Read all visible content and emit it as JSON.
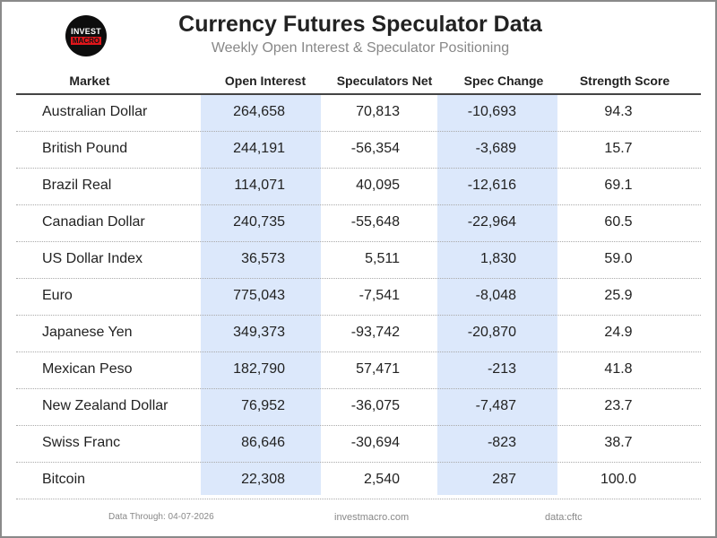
{
  "logo": {
    "line1": "INVEST",
    "line2": "MACRO"
  },
  "header": {
    "title": "Currency Futures Speculator Data",
    "subtitle": "Weekly Open Interest & Speculator Positioning"
  },
  "table": {
    "columns": [
      "Market",
      "Open Interest",
      "Speculators Net",
      "Spec Change",
      "Strength Score"
    ],
    "shaded_color": "#dce8fb",
    "rows": [
      {
        "market": "Australian Dollar",
        "open_interest": "264,658",
        "spec_net": "70,813",
        "spec_change": "-10,693",
        "strength": "94.3"
      },
      {
        "market": "British Pound",
        "open_interest": "244,191",
        "spec_net": "-56,354",
        "spec_change": "-3,689",
        "strength": "15.7"
      },
      {
        "market": "Brazil Real",
        "open_interest": "114,071",
        "spec_net": "40,095",
        "spec_change": "-12,616",
        "strength": "69.1"
      },
      {
        "market": "Canadian Dollar",
        "open_interest": "240,735",
        "spec_net": "-55,648",
        "spec_change": "-22,964",
        "strength": "60.5"
      },
      {
        "market": "US Dollar Index",
        "open_interest": "36,573",
        "spec_net": "5,511",
        "spec_change": "1,830",
        "strength": "59.0"
      },
      {
        "market": "Euro",
        "open_interest": "775,043",
        "spec_net": "-7,541",
        "spec_change": "-8,048",
        "strength": "25.9"
      },
      {
        "market": "Japanese Yen",
        "open_interest": "349,373",
        "spec_net": "-93,742",
        "spec_change": "-20,870",
        "strength": "24.9"
      },
      {
        "market": "Mexican Peso",
        "open_interest": "182,790",
        "spec_net": "57,471",
        "spec_change": "-213",
        "strength": "41.8"
      },
      {
        "market": "New Zealand Dollar",
        "open_interest": "76,952",
        "spec_net": "-36,075",
        "spec_change": "-7,487",
        "strength": "23.7"
      },
      {
        "market": "Swiss Franc",
        "open_interest": "86,646",
        "spec_net": "-30,694",
        "spec_change": "-823",
        "strength": "38.7"
      },
      {
        "market": "Bitcoin",
        "open_interest": "22,308",
        "spec_net": "2,540",
        "spec_change": "287",
        "strength": "100.0"
      }
    ]
  },
  "footer": {
    "data_through": "Data Through: 04-07-2026",
    "site": "investmacro.com",
    "source": "data:cftc"
  }
}
